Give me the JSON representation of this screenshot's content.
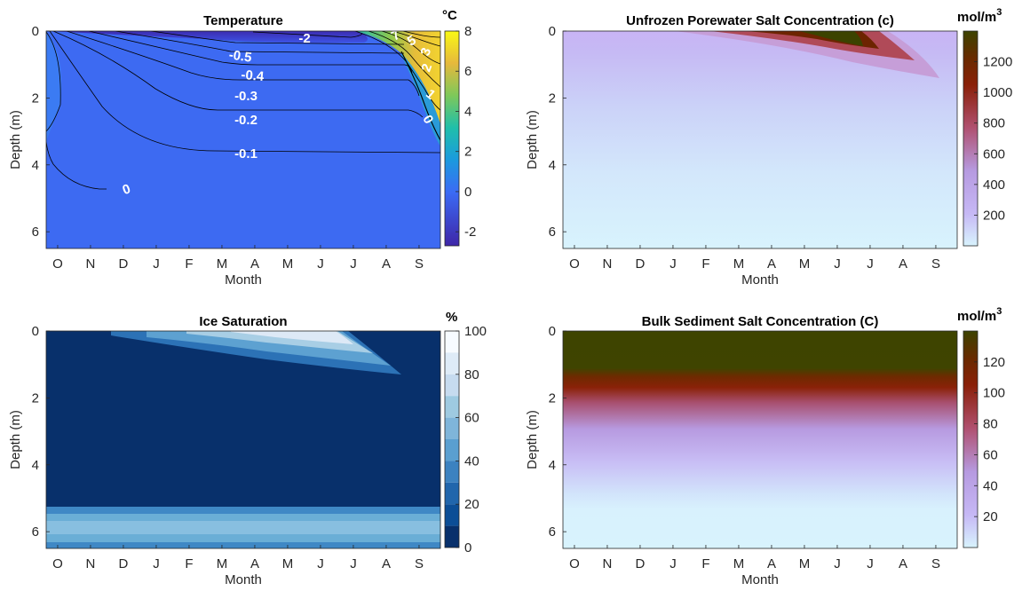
{
  "months": [
    "O",
    "N",
    "D",
    "J",
    "F",
    "M",
    "A",
    "M",
    "J",
    "J",
    "A",
    "S"
  ],
  "xlabel": "Month",
  "ylabel": "Depth (m)",
  "ytick_labels": [
    "0",
    "2",
    "4",
    "6"
  ],
  "panels": {
    "temperature": {
      "title": "Temperature",
      "unit": "°C",
      "cbar_ticks": [
        "8",
        "6",
        "4",
        "2",
        "0",
        "-2"
      ],
      "contour_labels": [
        "-2",
        "-0.5",
        "-0.4",
        "-0.3",
        "-0.2",
        "-0.1",
        "0",
        "0",
        "1",
        "2",
        "3",
        "5",
        "7"
      ]
    },
    "porewater": {
      "title": "Unfrozen Porewater Salt Concentration (c)",
      "unit_base": "mol/m",
      "unit_exp": "3",
      "cbar_ticks": [
        "1200",
        "1000",
        "800",
        "600",
        "400",
        "200"
      ]
    },
    "ice": {
      "title": "Ice Saturation",
      "unit": "%",
      "cbar_ticks": [
        "100",
        "80",
        "60",
        "40",
        "20",
        "0"
      ]
    },
    "bulk": {
      "title": "Bulk Sediment Salt Concentration (C)",
      "unit_base": "mol/m",
      "unit_exp": "3",
      "cbar_ticks": [
        "120",
        "100",
        "80",
        "60",
        "40",
        "20"
      ]
    }
  },
  "chart_data": [
    {
      "type": "heatmap",
      "title": "Temperature",
      "xlabel": "Month",
      "ylabel": "Depth (m)",
      "x_categories": [
        "O",
        "N",
        "D",
        "J",
        "F",
        "M",
        "A",
        "M",
        "J",
        "J",
        "A",
        "S"
      ],
      "ylim": [
        0,
        6.5
      ],
      "y_reversed": true,
      "colorbar_label": "°C",
      "colorbar_range": [
        -2.7,
        8
      ],
      "contour_levels": [
        -2,
        -0.5,
        -0.4,
        -0.3,
        -0.2,
        -0.1,
        0,
        1,
        2,
        3,
        5,
        7
      ]
    },
    {
      "type": "heatmap",
      "title": "Unfrozen Porewater Salt Concentration (c)",
      "xlabel": "Month",
      "ylabel": "Depth (m)",
      "x_categories": [
        "O",
        "N",
        "D",
        "J",
        "F",
        "M",
        "A",
        "M",
        "J",
        "J",
        "A",
        "S"
      ],
      "ylim": [
        0,
        6.5
      ],
      "y_reversed": true,
      "colorbar_label": "mol/m3",
      "colorbar_range": [
        0,
        1400
      ],
      "background_value": 50,
      "peak_value": 1400
    },
    {
      "type": "heatmap",
      "title": "Ice Saturation",
      "xlabel": "Month",
      "ylabel": "Depth (m)",
      "x_categories": [
        "O",
        "N",
        "D",
        "J",
        "F",
        "M",
        "A",
        "M",
        "J",
        "J",
        "A",
        "S"
      ],
      "ylim": [
        0,
        6.5
      ],
      "y_reversed": true,
      "colorbar_label": "%",
      "colorbar_range": [
        0,
        100
      ],
      "colorbar_steps": 10
    },
    {
      "type": "heatmap",
      "title": "Bulk Sediment Salt Concentration (C)",
      "xlabel": "Month",
      "ylabel": "Depth (m)",
      "x_categories": [
        "O",
        "N",
        "D",
        "J",
        "F",
        "M",
        "A",
        "M",
        "J",
        "J",
        "A",
        "S"
      ],
      "ylim": [
        0,
        6.5
      ],
      "y_reversed": true,
      "colorbar_label": "mol/m3",
      "colorbar_range": [
        0,
        140
      ],
      "depth_profile": [
        [
          0,
          130
        ],
        [
          1.2,
          130
        ],
        [
          1.6,
          105
        ],
        [
          2.2,
          80
        ],
        [
          3.2,
          45
        ],
        [
          4.3,
          20
        ],
        [
          5.2,
          8
        ],
        [
          6.5,
          5
        ]
      ]
    }
  ],
  "colors": {
    "temp_background": "#3d6af2",
    "temp_cold": "#3c2fb8",
    "ice_dark": "#08306b",
    "pore_background": "#c9b6f5",
    "pore_peak": "#3a4200",
    "bulk_top": "#3e4400",
    "bulk_bottom": "#d8f0fd"
  }
}
